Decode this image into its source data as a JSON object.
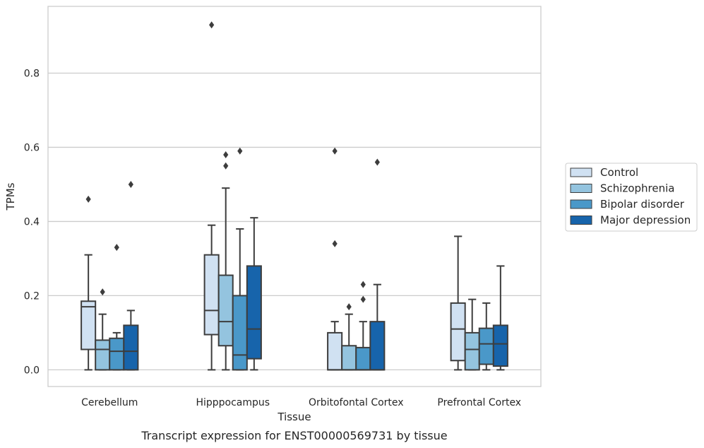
{
  "caption": "Transcript expression for ENST00000569731 by tissue",
  "chart_data": {
    "type": "box",
    "title": "",
    "xlabel": "Tissue",
    "ylabel": "TPMs",
    "ylim": [
      -0.045,
      0.98
    ],
    "yticks": [
      "0.0",
      "0.2",
      "0.4",
      "0.6",
      "0.8"
    ],
    "ytick_values": [
      0.0,
      0.2,
      0.4,
      0.6,
      0.8
    ],
    "grid": "horizontal",
    "legend_position": "right",
    "categories": [
      "Cerebellum",
      "Hipppocampus",
      "Orbitofontal Cortex",
      "Prefrontal Cortex"
    ],
    "series": [
      {
        "name": "Control",
        "color": "#d0e1f2",
        "boxes": [
          {
            "whislo": 0.0,
            "q1": 0.055,
            "med": 0.17,
            "q3": 0.185,
            "whishi": 0.31,
            "fliers": [
              0.46
            ]
          },
          {
            "whislo": 0.0,
            "q1": 0.095,
            "med": 0.16,
            "q3": 0.31,
            "whishi": 0.39,
            "fliers": [
              0.93
            ]
          },
          {
            "whislo": 0.0,
            "q1": 0.0,
            "med": 0.0,
            "q3": 0.1,
            "whishi": 0.13,
            "fliers": [
              0.34,
              0.59
            ]
          },
          {
            "whislo": 0.0,
            "q1": 0.025,
            "med": 0.11,
            "q3": 0.18,
            "whishi": 0.36,
            "fliers": []
          }
        ]
      },
      {
        "name": "Schizophrenia",
        "color": "#94c4df",
        "boxes": [
          {
            "whislo": 0.0,
            "q1": 0.0,
            "med": 0.055,
            "q3": 0.08,
            "whishi": 0.15,
            "fliers": [
              0.21
            ]
          },
          {
            "whislo": 0.0,
            "q1": 0.065,
            "med": 0.13,
            "q3": 0.255,
            "whishi": 0.49,
            "fliers": [
              0.55,
              0.58
            ]
          },
          {
            "whislo": 0.0,
            "q1": 0.0,
            "med": 0.0,
            "q3": 0.065,
            "whishi": 0.15,
            "fliers": [
              0.17
            ]
          },
          {
            "whislo": 0.0,
            "q1": 0.0,
            "med": 0.055,
            "q3": 0.1,
            "whishi": 0.19,
            "fliers": []
          }
        ]
      },
      {
        "name": "Bipolar disorder",
        "color": "#4a98c9",
        "boxes": [
          {
            "whislo": 0.0,
            "q1": 0.0,
            "med": 0.05,
            "q3": 0.085,
            "whishi": 0.1,
            "fliers": [
              0.33
            ]
          },
          {
            "whislo": 0.0,
            "q1": 0.0,
            "med": 0.04,
            "q3": 0.2,
            "whishi": 0.38,
            "fliers": [
              0.59
            ]
          },
          {
            "whislo": 0.0,
            "q1": 0.0,
            "med": 0.0,
            "q3": 0.06,
            "whishi": 0.13,
            "fliers": [
              0.19,
              0.23
            ]
          },
          {
            "whislo": 0.0,
            "q1": 0.015,
            "med": 0.07,
            "q3": 0.112,
            "whishi": 0.18,
            "fliers": []
          }
        ]
      },
      {
        "name": "Major depression",
        "color": "#1764ab",
        "boxes": [
          {
            "whislo": 0.0,
            "q1": 0.0,
            "med": 0.05,
            "q3": 0.12,
            "whishi": 0.16,
            "fliers": [
              0.5
            ]
          },
          {
            "whislo": 0.0,
            "q1": 0.03,
            "med": 0.11,
            "q3": 0.28,
            "whishi": 0.41,
            "fliers": []
          },
          {
            "whislo": 0.0,
            "q1": 0.0,
            "med": 0.0,
            "q3": 0.13,
            "whishi": 0.23,
            "fliers": [
              0.56
            ]
          },
          {
            "whislo": 0.0,
            "q1": 0.01,
            "med": 0.07,
            "q3": 0.12,
            "whishi": 0.28,
            "fliers": []
          }
        ]
      }
    ]
  }
}
